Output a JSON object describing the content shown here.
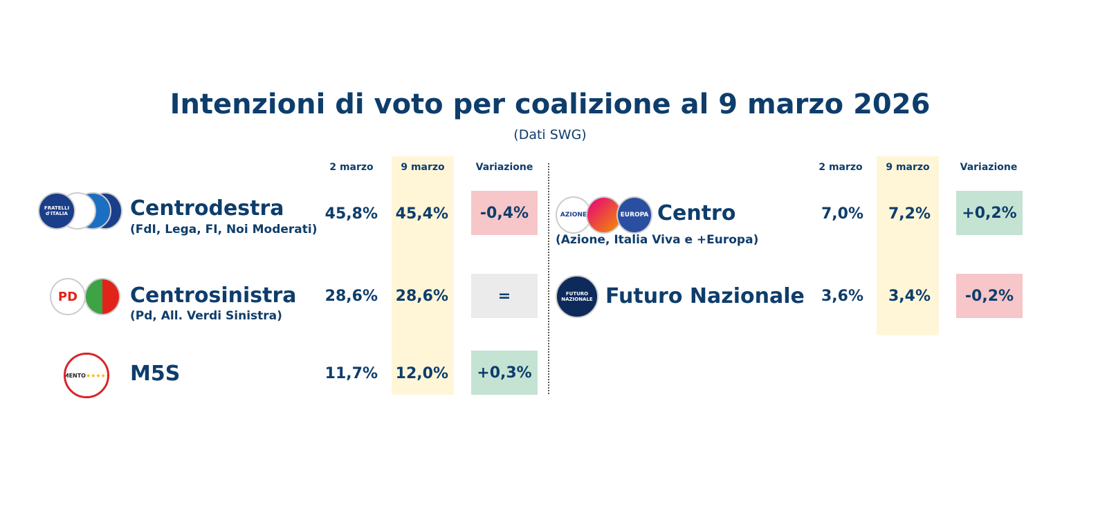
{
  "title": "Intenzioni di voto per coalizione al 9 marzo 2026",
  "subtitle": "(Dati SWG)",
  "colors": {
    "text": "#0e3d6b",
    "highlight_column": "#fff6d8",
    "decrease": "#f6c6c8",
    "increase": "#c5e3d3",
    "unchanged": "#ebebeb"
  },
  "chart_data": {
    "type": "table",
    "columns": [
      "2 marzo",
      "9 marzo",
      "Variazione"
    ],
    "rows": [
      {
        "name": "Centrodestra",
        "parties": "(FdI, Lega, FI, Noi Moderati)",
        "v1": "45,8%",
        "v2": "45,4%",
        "change": "-0,4%",
        "logo": "FRATELLI d'ITALIA"
      },
      {
        "name": "Centrosinistra",
        "parties": "(Pd, All. Verdi Sinistra)",
        "v1": "28,6%",
        "v2": "28,6%",
        "change": "=",
        "logo": "PD"
      },
      {
        "name": "M5S",
        "parties": "",
        "v1": "11,7%",
        "v2": "12,0%",
        "change": "+0,3%",
        "logo": "MOVIMENTO 2050"
      },
      {
        "name": "Centro",
        "parties": "(Azione, Italia Viva e +Europa)",
        "v1": "7,0%",
        "v2": "7,2%",
        "change": "+0,2%",
        "logo": "AZIONE ITALIAVIVA EUROPA"
      },
      {
        "name": "Futuro Nazionale",
        "parties": "",
        "v1": "3,6%",
        "v2": "3,4%",
        "change": "-0,2%",
        "logo": "FUTURO NAZIONALE VANNACCI"
      }
    ]
  }
}
